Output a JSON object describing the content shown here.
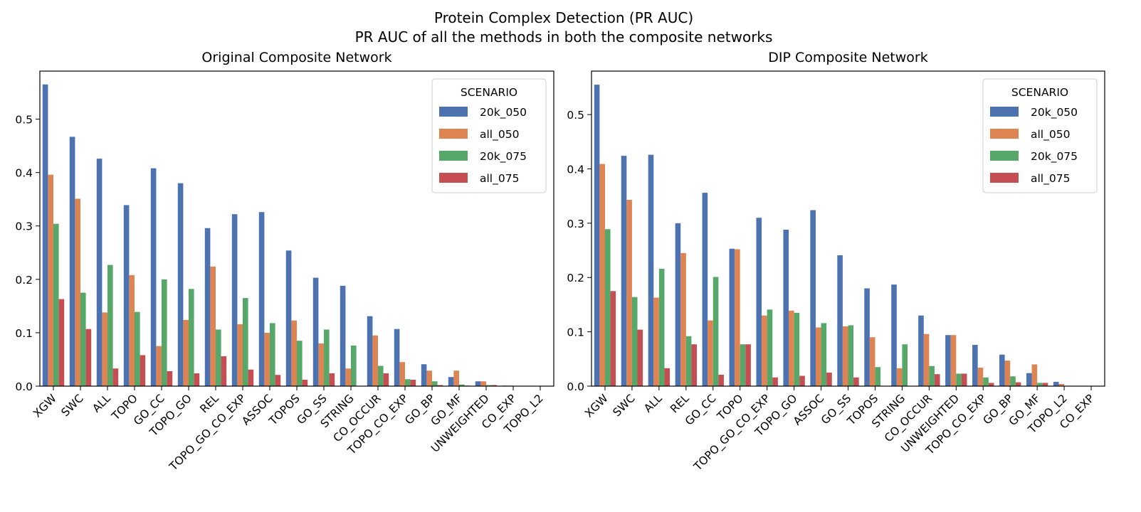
{
  "figure": {
    "title_line1": "Protein Complex Detection (PR AUC)",
    "title_line2": "PR AUC of all the methods in both the composite networks"
  },
  "chart_data": [
    {
      "type": "bar",
      "title": "Original Composite Network",
      "xlabel": "",
      "ylabel": "",
      "ylim": [
        0,
        0.59
      ],
      "yticks": [
        "0.0",
        "0.1",
        "0.2",
        "0.3",
        "0.4",
        "0.5"
      ],
      "legend": {
        "title": "SCENARIO",
        "placement": "top-right"
      },
      "categories": [
        "XGW",
        "SWC",
        "ALL",
        "TOPO",
        "GO_CC",
        "TOPO_GO",
        "REL",
        "TOPO_GO_CO_EXP",
        "ASSOC",
        "TOPOS",
        "GO_SS",
        "STRING",
        "CO_OCCUR",
        "TOPO_CO_EXP",
        "GO_BP",
        "GO_MF",
        "UNWEIGHTED",
        "CO_EXP",
        "TOPO_L2"
      ],
      "series": [
        {
          "name": "20k_050",
          "color": "#4c72b0",
          "values": [
            0.565,
            0.467,
            0.426,
            0.339,
            0.408,
            0.38,
            0.296,
            0.322,
            0.326,
            0.254,
            0.203,
            0.188,
            0.131,
            0.107,
            0.041,
            0.017,
            0.009,
            0.001,
            0.0
          ]
        },
        {
          "name": "all_050",
          "color": "#dd8452",
          "values": [
            0.396,
            0.351,
            0.138,
            0.208,
            0.075,
            0.124,
            0.224,
            0.116,
            0.1,
            0.123,
            0.08,
            0.033,
            0.095,
            0.045,
            0.029,
            0.029,
            0.009,
            0.001,
            0.0
          ]
        },
        {
          "name": "20k_075",
          "color": "#55a868",
          "values": [
            0.304,
            0.175,
            0.227,
            0.139,
            0.2,
            0.182,
            0.106,
            0.165,
            0.118,
            0.085,
            0.106,
            0.076,
            0.038,
            0.013,
            0.009,
            0.003,
            0.002,
            0.0,
            0.0
          ]
        },
        {
          "name": "all_075",
          "color": "#c44e52",
          "values": [
            0.163,
            0.107,
            0.033,
            0.058,
            0.028,
            0.024,
            0.056,
            0.031,
            0.021,
            0.012,
            0.024,
            0.0,
            0.024,
            0.012,
            0.002,
            0.001,
            0.002,
            0.0,
            0.0
          ]
        }
      ]
    },
    {
      "type": "bar",
      "title": "DIP Composite Network",
      "xlabel": "",
      "ylabel": "",
      "ylim": [
        0,
        0.58
      ],
      "yticks": [
        "0.0",
        "0.1",
        "0.2",
        "0.3",
        "0.4",
        "0.5"
      ],
      "legend": {
        "title": "SCENARIO",
        "placement": "top-right"
      },
      "categories": [
        "XGW",
        "SWC",
        "ALL",
        "REL",
        "GO_CC",
        "TOPO",
        "TOPO_GO_CO_EXP",
        "TOPO_GO",
        "ASSOC",
        "GO_SS",
        "TOPOS",
        "STRING",
        "CO_OCCUR",
        "UNWEIGHTED",
        "TOPO_CO_EXP",
        "GO_BP",
        "GO_MF",
        "TOPO_L2",
        "CO_EXP"
      ],
      "series": [
        {
          "name": "20k_050",
          "color": "#4c72b0",
          "values": [
            0.555,
            0.424,
            0.426,
            0.3,
            0.356,
            0.253,
            0.31,
            0.288,
            0.324,
            0.241,
            0.18,
            0.187,
            0.13,
            0.094,
            0.076,
            0.058,
            0.024,
            0.008,
            0.0
          ]
        },
        {
          "name": "all_050",
          "color": "#dd8452",
          "values": [
            0.409,
            0.343,
            0.163,
            0.245,
            0.121,
            0.252,
            0.13,
            0.139,
            0.108,
            0.11,
            0.09,
            0.033,
            0.096,
            0.094,
            0.034,
            0.047,
            0.04,
            0.004,
            0.0
          ]
        },
        {
          "name": "20k_075",
          "color": "#55a868",
          "values": [
            0.289,
            0.164,
            0.216,
            0.092,
            0.201,
            0.077,
            0.141,
            0.135,
            0.116,
            0.112,
            0.035,
            0.077,
            0.037,
            0.023,
            0.016,
            0.018,
            0.006,
            0.0,
            0.0
          ]
        },
        {
          "name": "all_075",
          "color": "#c44e52",
          "values": [
            0.175,
            0.104,
            0.033,
            0.077,
            0.021,
            0.077,
            0.016,
            0.019,
            0.025,
            0.016,
            0.0,
            0.0,
            0.022,
            0.023,
            0.006,
            0.007,
            0.006,
            0.0,
            0.0
          ]
        }
      ]
    }
  ]
}
